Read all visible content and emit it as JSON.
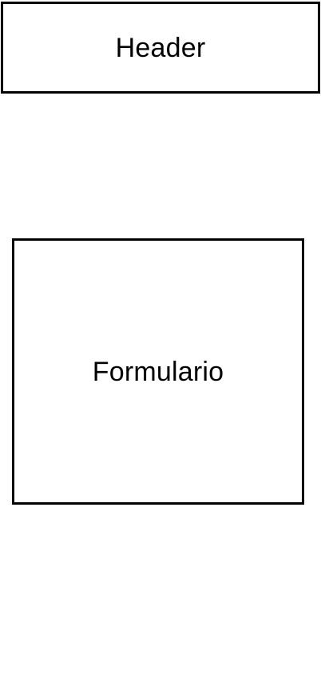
{
  "header": {
    "label": "Header"
  },
  "form": {
    "label": "Formulario"
  },
  "colors": {
    "background": "#ffffff",
    "border": "#000000",
    "text": "#000000"
  }
}
